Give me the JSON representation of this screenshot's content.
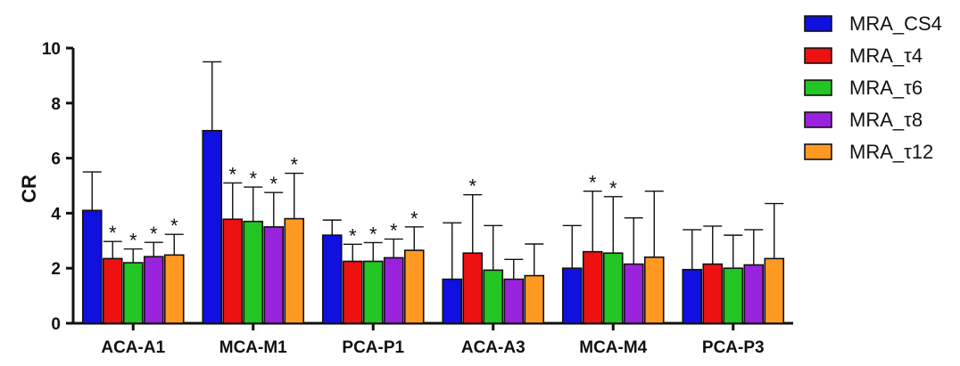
{
  "chart_data": {
    "type": "bar",
    "title": "",
    "xlabel": "",
    "ylabel": "CR",
    "ylim": [
      0,
      10
    ],
    "yticks": [
      "0",
      "2",
      "4",
      "6",
      "8",
      "10"
    ],
    "grid": false,
    "legend_position": "top-right",
    "categories": [
      "ACA-A1",
      "MCA-M1",
      "PCA-P1",
      "ACA-A3",
      "MCA-M4",
      "PCA-P3"
    ],
    "series": [
      {
        "name": "MRA_CS4",
        "color": "#1010e0",
        "values": [
          4.1,
          7.0,
          3.2,
          1.6,
          2.0,
          1.95
        ],
        "errors": [
          1.4,
          2.5,
          0.55,
          2.05,
          1.55,
          1.45
        ],
        "significant": [
          false,
          false,
          false,
          false,
          false,
          false
        ]
      },
      {
        "name": "MRA_τ4",
        "color": "#ee1111",
        "values": [
          2.35,
          3.78,
          2.25,
          2.55,
          2.6,
          2.15
        ],
        "errors": [
          0.62,
          1.32,
          0.62,
          2.12,
          2.2,
          1.38
        ],
        "significant": [
          true,
          true,
          true,
          true,
          true,
          false
        ]
      },
      {
        "name": "MRA_τ6",
        "color": "#22c522",
        "values": [
          2.2,
          3.7,
          2.25,
          1.93,
          2.55,
          2.0
        ],
        "errors": [
          0.5,
          1.25,
          0.68,
          1.62,
          2.05,
          1.2
        ],
        "significant": [
          true,
          true,
          true,
          false,
          true,
          false
        ]
      },
      {
        "name": "MRA_τ8",
        "color": "#9922dd",
        "values": [
          2.42,
          3.5,
          2.38,
          1.6,
          2.15,
          2.12
        ],
        "errors": [
          0.52,
          1.25,
          0.68,
          0.72,
          1.68,
          1.28
        ],
        "significant": [
          true,
          true,
          true,
          false,
          false,
          false
        ]
      },
      {
        "name": "MRA_τ12",
        "color": "#ff9922",
        "values": [
          2.48,
          3.8,
          2.65,
          1.73,
          2.4,
          2.35
        ],
        "errors": [
          0.75,
          1.65,
          0.85,
          1.15,
          2.4,
          2.0
        ],
        "significant": [
          true,
          true,
          true,
          false,
          false,
          false
        ]
      }
    ],
    "significance_marker": "*"
  }
}
